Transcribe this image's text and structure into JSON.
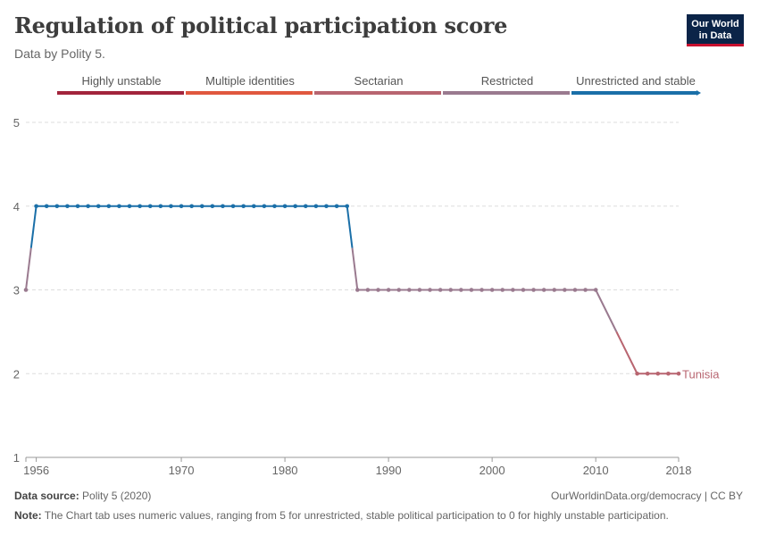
{
  "header": {
    "title": "Regulation of political participation score",
    "subtitle": "Data by Polity 5."
  },
  "logo": {
    "line1": "Our World",
    "line2": "in Data"
  },
  "footer": {
    "source_label": "Data source:",
    "source_text": "Polity 5 (2020)",
    "link_text": "OurWorldinData.org/democracy | CC BY",
    "note_label": "Note:",
    "note_text": "The Chart tab uses numeric values, ranging from 5 for unrestricted, stable political participation to 0 for highly unstable participation."
  },
  "colors": {
    "highly_unstable": "#a2243c",
    "multiple_identities": "#e0583e",
    "sectarian": "#b86570",
    "restricted": "#9a7a8f",
    "unrestricted_and_stable": "#1a6fa8"
  },
  "chart_data": {
    "type": "line",
    "title": "Regulation of political participation score",
    "y_ticks": [
      1,
      2,
      3,
      4,
      5
    ],
    "ylim": [
      1,
      5
    ],
    "x_ticks": [
      1956,
      1970,
      1980,
      1990,
      2000,
      2010,
      2018
    ],
    "xlim": [
      1955,
      2018
    ],
    "grid": true,
    "legend_position": "top",
    "legend": [
      {
        "label": "Highly unstable",
        "color_key": "highly_unstable"
      },
      {
        "label": "Multiple identities",
        "color_key": "multiple_identities"
      },
      {
        "label": "Sectarian",
        "color_key": "sectarian"
      },
      {
        "label": "Restricted",
        "color_key": "restricted"
      },
      {
        "label": "Unrestricted and stable",
        "color_key": "unrestricted_and_stable"
      }
    ],
    "series": [
      {
        "name": "Tunisia",
        "x": [
          1955,
          1956,
          1957,
          1958,
          1959,
          1960,
          1961,
          1962,
          1963,
          1964,
          1965,
          1966,
          1967,
          1968,
          1969,
          1970,
          1971,
          1972,
          1973,
          1974,
          1975,
          1976,
          1977,
          1978,
          1979,
          1980,
          1981,
          1982,
          1983,
          1984,
          1985,
          1986,
          1987,
          1988,
          1989,
          1990,
          1991,
          1992,
          1993,
          1994,
          1995,
          1996,
          1997,
          1998,
          1999,
          2000,
          2001,
          2002,
          2003,
          2004,
          2005,
          2006,
          2007,
          2008,
          2009,
          2010,
          2014,
          2015,
          2016,
          2017,
          2018
        ],
        "y": [
          3,
          4,
          4,
          4,
          4,
          4,
          4,
          4,
          4,
          4,
          4,
          4,
          4,
          4,
          4,
          4,
          4,
          4,
          4,
          4,
          4,
          4,
          4,
          4,
          4,
          4,
          4,
          4,
          4,
          4,
          4,
          4,
          3,
          3,
          3,
          3,
          3,
          3,
          3,
          3,
          3,
          3,
          3,
          3,
          3,
          3,
          3,
          3,
          3,
          3,
          3,
          3,
          3,
          3,
          3,
          3,
          2,
          2,
          2,
          2,
          2
        ]
      }
    ]
  }
}
